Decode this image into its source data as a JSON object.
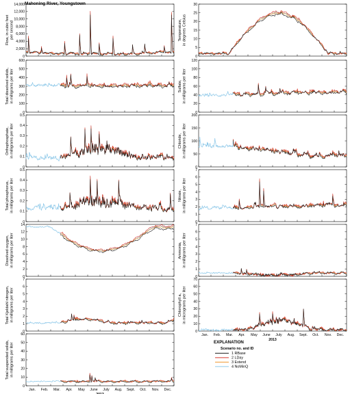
{
  "title": "Mahoning River, Youngstown",
  "year_label": "2013",
  "months": [
    "Jan.",
    "Feb.",
    "Mar.",
    "Apr.",
    "May",
    "June",
    "July",
    "Aug.",
    "Sept.",
    "Oct.",
    "Nov.",
    "Dec."
  ],
  "legend": {
    "heading": "EXPLANATION",
    "subheading": "Scenario no. and ID",
    "items": [
      {
        "label": "1 RBase",
        "color": "#1f1f1f"
      },
      {
        "label": "2 LDay",
        "color": "#d6352a"
      },
      {
        "label": "3 Extend",
        "color": "#f0962d"
      },
      {
        "label": "4 NoMinQ",
        "color": "#8fc9e9"
      }
    ]
  },
  "chart_data": [
    {
      "type": "line",
      "id": "flow",
      "side": "left",
      "ylabel": [
        "Flow, in cubic feet",
        "per second"
      ],
      "ylim": [
        0,
        14000
      ],
      "yticks": [
        0,
        2000,
        4000,
        6000,
        8000,
        10000,
        12000,
        14000
      ],
      "tick_labels": [
        "0",
        "2,000",
        "4,000",
        "6,000",
        "8,000",
        "10,000",
        "12,000",
        "14,000"
      ],
      "base": 600,
      "var": 400,
      "noise": 900,
      "season": "flow",
      "spikes": [
        [
          6,
          5200
        ],
        [
          38,
          2500
        ],
        [
          95,
          3800
        ],
        [
          132,
          6000
        ],
        [
          158,
          11800
        ],
        [
          180,
          3400
        ],
        [
          214,
          5200
        ],
        [
          262,
          3000
        ],
        [
          292,
          3200
        ],
        [
          340,
          2800
        ],
        [
          358,
          11500
        ]
      ],
      "start": 0
    },
    {
      "type": "line",
      "id": "temperature",
      "side": "right",
      "ylabel": [
        "Temperature,",
        "in degrees Celsius"
      ],
      "ylim": [
        0,
        30
      ],
      "yticks": [
        0,
        5,
        10,
        15,
        20,
        25,
        30
      ],
      "tick_labels": [
        "0",
        "5",
        "10",
        "15",
        "20",
        "25",
        "30"
      ],
      "base": 1.5,
      "var": 23.5,
      "noise": 1.8,
      "season": "temp",
      "spikes": [],
      "start": 0
    },
    {
      "type": "line",
      "id": "tds",
      "side": "left",
      "ylabel": [
        "Total dissolved solids,",
        "in milligrams per liter"
      ],
      "ylim": [
        0,
        600
      ],
      "yticks": [
        0,
        100,
        200,
        300,
        400,
        500,
        600
      ],
      "tick_labels": [
        "0",
        "100",
        "200",
        "300",
        "400",
        "500",
        "600"
      ],
      "base": 310,
      "var": 20,
      "noise": 55,
      "season": "flat",
      "spikes": [
        [
          100,
          420
        ],
        [
          110,
          440
        ],
        [
          150,
          430
        ]
      ],
      "start": 85
    },
    {
      "type": "line",
      "id": "sulfate",
      "side": "right",
      "ylabel": [
        "Sulfate,",
        "in milligrams per liter"
      ],
      "ylim": [
        0,
        120
      ],
      "yticks": [
        0,
        20,
        40,
        60,
        80,
        100,
        120
      ],
      "tick_labels": [
        "0",
        "20",
        "40",
        "60",
        "80",
        "100",
        "120"
      ],
      "base": 38,
      "var": 10,
      "noise": 12,
      "season": "rise",
      "spikes": [
        [
          147,
          65
        ],
        [
          165,
          60
        ],
        [
          200,
          55
        ]
      ],
      "start": 85
    },
    {
      "type": "line",
      "id": "orthophosphate",
      "side": "left",
      "ylabel": [
        "Orthophosphate,",
        "in milligrams per liter"
      ],
      "ylim": [
        0,
        0.5
      ],
      "yticks": [
        0,
        0.1,
        0.2,
        0.3,
        0.4,
        0.5
      ],
      "tick_labels": [
        "0",
        "0.1",
        "0.2",
        "0.3",
        "0.4",
        "0.5"
      ],
      "base": 0.09,
      "var": 0.08,
      "noise": 0.09,
      "season": "summer",
      "spikes": [
        [
          145,
          0.37
        ],
        [
          160,
          0.39
        ],
        [
          180,
          0.33
        ],
        [
          110,
          0.29
        ]
      ],
      "start": 85
    },
    {
      "type": "line",
      "id": "chloride",
      "side": "right",
      "ylabel": [
        "Chloride,",
        "in milligrams per liter"
      ],
      "ylim": [
        0,
        200
      ],
      "yticks": [
        0,
        50,
        100,
        150,
        200
      ],
      "tick_labels": [
        "0",
        "50",
        "100",
        "150",
        "200"
      ],
      "base": 78,
      "var": -35,
      "noise": 28,
      "season": "fall",
      "spikes": [
        [
          3,
          115
        ],
        [
          40,
          110
        ],
        [
          85,
          105
        ]
      ],
      "start": 85
    },
    {
      "type": "line",
      "id": "total-phosphorus",
      "side": "left",
      "ylabel": [
        "Total phosphorus,",
        "in milligrams per liter"
      ],
      "ylim": [
        0,
        0.5
      ],
      "yticks": [
        0,
        0.1,
        0.2,
        0.3,
        0.4,
        0.5
      ],
      "tick_labels": [
        "0",
        "0.1",
        "0.2",
        "0.3",
        "0.4",
        "0.5"
      ],
      "base": 0.13,
      "var": 0.07,
      "noise": 0.09,
      "season": "summer",
      "spikes": [
        [
          158,
          0.43
        ],
        [
          175,
          0.4
        ],
        [
          228,
          0.4
        ],
        [
          108,
          0.28
        ],
        [
          355,
          0.27
        ]
      ],
      "start": 85
    },
    {
      "type": "line",
      "id": "nitrate",
      "side": "right",
      "ylabel": [
        "Nitrate,",
        "in milligrams per liter"
      ],
      "ylim": [
        0,
        7
      ],
      "yticks": [
        0,
        1,
        2,
        3,
        4,
        5,
        6,
        7
      ],
      "tick_labels": [
        "0",
        "1",
        "2",
        "3",
        "4",
        "5",
        "6",
        "7"
      ],
      "base": 1.8,
      "var": 0.5,
      "noise": 0.8,
      "season": "rise",
      "spikes": [
        [
          150,
          5.6
        ],
        [
          160,
          4.4
        ],
        [
          330,
          3.6
        ],
        [
          100,
          3.0
        ]
      ],
      "start": 85
    },
    {
      "type": "line",
      "id": "dissolved-oxygen",
      "side": "left",
      "ylabel": [
        "Dissolved oxygen,",
        "in milligrams per liter"
      ],
      "ylim": [
        0,
        14
      ],
      "yticks": [
        0,
        2,
        4,
        6,
        8,
        10,
        12,
        14
      ],
      "tick_labels": [
        "0",
        "2",
        "4",
        "6",
        "8",
        "10",
        "12",
        "14"
      ],
      "base": 13.3,
      "var": -6.3,
      "noise": 0.7,
      "season": "do",
      "spikes": [],
      "start": 85
    },
    {
      "type": "line",
      "id": "ammonia",
      "side": "right",
      "ylabel": [
        "Ammonia,",
        "in milligrams per liter"
      ],
      "ylim": [
        0,
        7
      ],
      "yticks": [
        0,
        1,
        2,
        3,
        4,
        5,
        6,
        7
      ],
      "tick_labels": [
        "0",
        "1",
        "2",
        "3",
        "4",
        "5",
        "6",
        "7"
      ],
      "base": 0.45,
      "var": -0.3,
      "noise": 0.35,
      "season": "summer",
      "spikes": [
        [
          105,
          1.1
        ],
        [
          118,
          0.9
        ]
      ],
      "start": 85
    },
    {
      "type": "line",
      "id": "kjeldahl",
      "side": "left",
      "ylabel": [
        "Total Kjeldahl nitrogen,",
        "in milligrams per liter"
      ],
      "ylim": [
        0,
        7
      ],
      "yticks": [
        0,
        1,
        2,
        3,
        4,
        5,
        6,
        7
      ],
      "tick_labels": [
        "0",
        "1",
        "2",
        "3",
        "4",
        "5",
        "6",
        "7"
      ],
      "base": 1.1,
      "var": 0.5,
      "noise": 0.4,
      "season": "spring",
      "spikes": [
        [
          112,
          2.3
        ],
        [
          118,
          2.1
        ],
        [
          285,
          1.5
        ]
      ],
      "start": 85
    },
    {
      "type": "line",
      "id": "chlorophyll",
      "side": "right",
      "ylabel": [
        "Chlorophyll a,",
        "in micrograms per liter"
      ],
      "ylim": [
        0,
        70
      ],
      "yticks": [
        0,
        10,
        20,
        30,
        40,
        50,
        60,
        70
      ],
      "tick_labels": [
        "0",
        "10",
        "20",
        "30",
        "40",
        "50",
        "60",
        "70"
      ],
      "base": 1.5,
      "var": 13,
      "noise": 7,
      "season": "chl",
      "spikes": [
        [
          258,
          30
        ],
        [
          182,
          25
        ],
        [
          150,
          24
        ]
      ],
      "start": 85
    },
    {
      "type": "line",
      "id": "tss",
      "side": "left",
      "ylabel": [
        "Total suspended solids,",
        "in milligrams per liter"
      ],
      "ylim": [
        0,
        60
      ],
      "yticks": [
        0,
        10,
        20,
        30,
        40,
        50,
        60
      ],
      "tick_labels": [
        "0",
        "10",
        "20",
        "30",
        "40",
        "50",
        "60"
      ],
      "base": 5,
      "var": 1,
      "noise": 2,
      "season": "flat",
      "spikes": [
        [
          157,
          14
        ],
        [
          162,
          12
        ],
        [
          170,
          9
        ],
        [
          358,
          9
        ]
      ],
      "start": 85
    }
  ]
}
